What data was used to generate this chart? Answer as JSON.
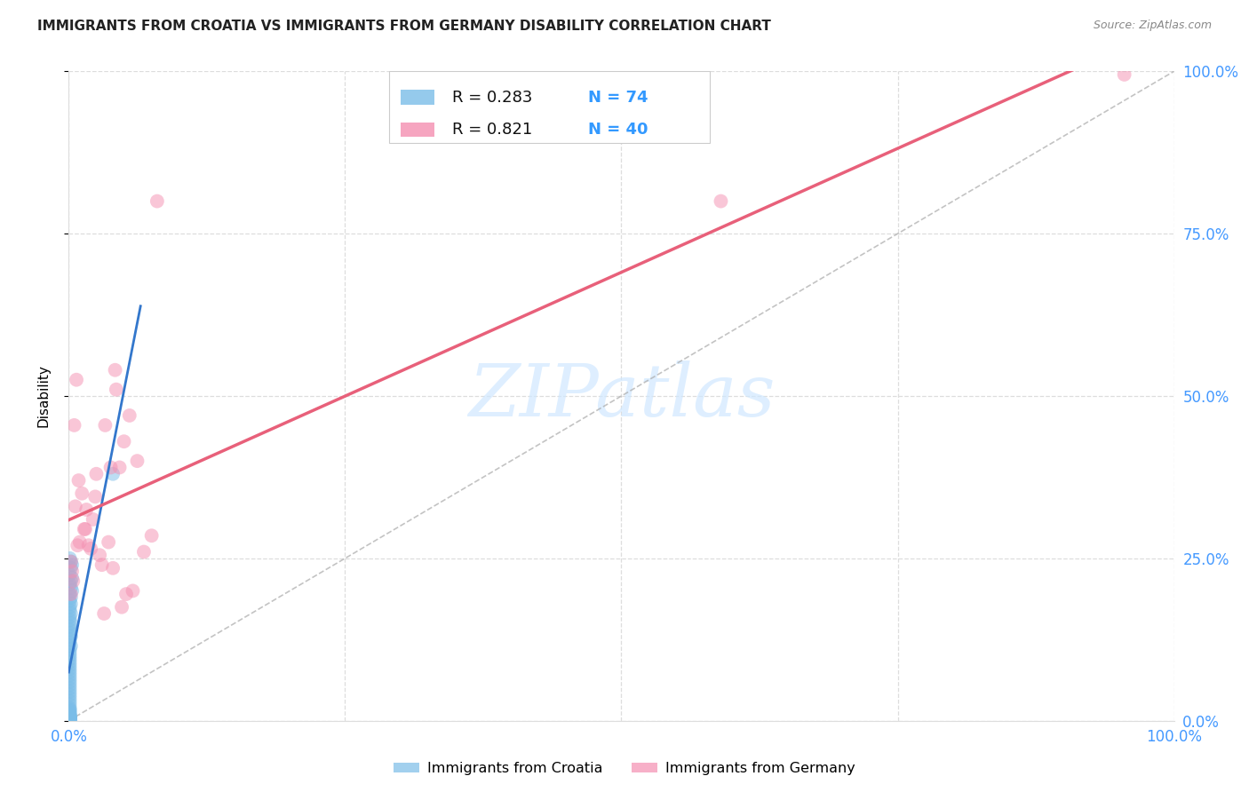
{
  "title": "IMMIGRANTS FROM CROATIA VS IMMIGRANTS FROM GERMANY DISABILITY CORRELATION CHART",
  "source": "Source: ZipAtlas.com",
  "ylabel": "Disability",
  "xlim": [
    0,
    1
  ],
  "ylim": [
    0,
    1
  ],
  "croatia_R": 0.283,
  "croatia_N": 74,
  "germany_R": 0.821,
  "germany_N": 40,
  "croatia_color": "#7bbde8",
  "germany_color": "#f48fb1",
  "croatia_line_color": "#3377cc",
  "germany_line_color": "#e8607a",
  "diag_line_color": "#aaaaaa",
  "watermark_color": "#d0e8ff",
  "background_color": "#ffffff",
  "grid_color": "#dddddd",
  "title_color": "#222222",
  "source_color": "#888888",
  "axis_label_color": "#4499ff",
  "legend_text_color": "#111111",
  "legend_N_color": "#3399ff",
  "croatia_points_x": [
    0.002,
    0.003,
    0.002,
    0.001,
    0.003,
    0.002,
    0.001,
    0.002,
    0.003,
    0.001,
    0.002,
    0.001,
    0.002,
    0.001,
    0.001,
    0.002,
    0.001,
    0.001,
    0.002,
    0.001,
    0.001,
    0.001,
    0.002,
    0.001,
    0.001,
    0.002,
    0.001,
    0.001,
    0.001,
    0.001,
    0.001,
    0.001,
    0.001,
    0.001,
    0.001,
    0.001,
    0.001,
    0.001,
    0.001,
    0.001,
    0.001,
    0.001,
    0.001,
    0.001,
    0.001,
    0.001,
    0.001,
    0.001,
    0.001,
    0.001,
    0.001,
    0.001,
    0.001,
    0.001,
    0.001,
    0.001,
    0.001,
    0.001,
    0.001,
    0.001,
    0.001,
    0.001,
    0.001,
    0.001,
    0.001,
    0.001,
    0.001,
    0.001,
    0.04,
    0.001,
    0.001,
    0.001,
    0.001,
    0.001
  ],
  "croatia_points_y": [
    0.245,
    0.24,
    0.235,
    0.225,
    0.22,
    0.215,
    0.21,
    0.205,
    0.2,
    0.195,
    0.19,
    0.185,
    0.18,
    0.175,
    0.17,
    0.165,
    0.16,
    0.155,
    0.15,
    0.145,
    0.14,
    0.135,
    0.13,
    0.125,
    0.12,
    0.115,
    0.11,
    0.105,
    0.1,
    0.095,
    0.09,
    0.085,
    0.08,
    0.075,
    0.07,
    0.065,
    0.06,
    0.055,
    0.05,
    0.045,
    0.04,
    0.035,
    0.03,
    0.025,
    0.02,
    0.018,
    0.016,
    0.014,
    0.012,
    0.01,
    0.008,
    0.007,
    0.006,
    0.005,
    0.004,
    0.003,
    0.002,
    0.001,
    0.0,
    0.001,
    0.002,
    0.003,
    0.004,
    0.005,
    0.006,
    0.007,
    0.008,
    0.009,
    0.38,
    0.001,
    0.002,
    0.003,
    0.25,
    0.001
  ],
  "germany_points_x": [
    0.002,
    0.004,
    0.006,
    0.008,
    0.01,
    0.012,
    0.015,
    0.018,
    0.02,
    0.022,
    0.025,
    0.028,
    0.03,
    0.033,
    0.036,
    0.04,
    0.043,
    0.046,
    0.05,
    0.055,
    0.002,
    0.003,
    0.005,
    0.007,
    0.009,
    0.014,
    0.016,
    0.024,
    0.032,
    0.038,
    0.042,
    0.048,
    0.052,
    0.058,
    0.062,
    0.068,
    0.075,
    0.08,
    0.59,
    0.955
  ],
  "germany_points_y": [
    0.195,
    0.215,
    0.33,
    0.27,
    0.275,
    0.35,
    0.295,
    0.27,
    0.265,
    0.31,
    0.38,
    0.255,
    0.24,
    0.455,
    0.275,
    0.235,
    0.51,
    0.39,
    0.43,
    0.47,
    0.245,
    0.23,
    0.455,
    0.525,
    0.37,
    0.295,
    0.325,
    0.345,
    0.165,
    0.39,
    0.54,
    0.175,
    0.195,
    0.2,
    0.4,
    0.26,
    0.285,
    0.8,
    0.8,
    0.995
  ]
}
